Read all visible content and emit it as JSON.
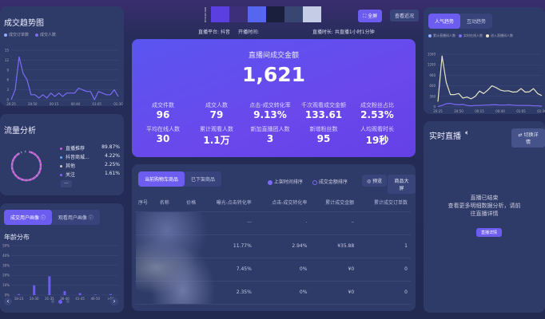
{
  "trend": {
    "title": "成交趋势图",
    "legend": [
      "成交订单数",
      "成交人数"
    ],
    "colors": [
      "#8fb0ff",
      "#7b6cf6"
    ],
    "chart_data": {
      "type": "line",
      "yticks": [
        "15",
        "12",
        "9",
        "6",
        "3",
        "0"
      ],
      "ylim": [
        0,
        15
      ],
      "xticks": [
        "20:25",
        "20:50",
        "00:15",
        "00:40",
        "01:05",
        "01:30"
      ],
      "series": [
        {
          "name": "成交人数",
          "values": [
            0,
            3,
            13,
            8,
            6,
            1.5,
            1.5,
            0.5,
            1.5,
            0.5,
            2,
            1,
            2,
            1,
            2,
            2,
            2,
            3.5,
            3,
            2.5,
            2.5,
            0,
            2.5,
            2,
            1.5,
            1.5,
            3,
            1
          ]
        }
      ]
    }
  },
  "traffic": {
    "title": "流量分析",
    "more": "···",
    "items": [
      {
        "label": "直播推荐",
        "value": "89.87%",
        "color": "#d05ad8"
      },
      {
        "label": "抖音商城...",
        "value": "4.22%",
        "color": "#5fa8ff"
      },
      {
        "label": "其他",
        "value": "2.25%",
        "color": "#c8c8c8"
      },
      {
        "label": "关注",
        "value": "1.61%",
        "color": "#7b6cf6"
      }
    ]
  },
  "portrait": {
    "tabs": [
      "成交用户画像 ⓘ",
      "观看用户画像 ⓘ"
    ],
    "subtitle": "年龄分布",
    "chart_data": {
      "type": "bar",
      "categories": [
        "18-23",
        "24-30",
        "31-35",
        "36-40",
        "41-45",
        "46-50",
        ">50"
      ],
      "values": [
        1,
        10,
        19,
        4,
        2,
        0.5,
        1
      ],
      "yticks": [
        "50%",
        "40%",
        "30%",
        "20%",
        "10%",
        "0%"
      ],
      "ylim": [
        0,
        50
      ]
    },
    "prev": "‹",
    "next": "›",
    "page": 2,
    "pages": 3
  },
  "header": {
    "swatches": [
      "#5b3fe0",
      "#3d2f7a",
      "#5566f0",
      "#1a1f3d",
      "#3a4672",
      "#c4cce6"
    ],
    "swatch_label": "RED DESIGN",
    "fullscreen": "⛶ 全屏",
    "review": "查看近况",
    "platform": "直播平台: 抖音",
    "start": "开播时间: ",
    "duration": "直播时长: 共直播1小时1分钟"
  },
  "kpi": {
    "title": "直播间成交金额",
    "value": "1,621",
    "items": [
      {
        "label": "成交件数",
        "value": "96"
      },
      {
        "label": "成交人数",
        "value": "79"
      },
      {
        "label": "点击-成交转化率",
        "value": "9.13%"
      },
      {
        "label": "千次观看成交金额",
        "value": "133.61"
      },
      {
        "label": "成交粉丝占比",
        "value": "2.53%"
      },
      {
        "label": "平均在线人数",
        "value": "30"
      },
      {
        "label": "累计观看人数",
        "value": "1.1万"
      },
      {
        "label": "新加直播团人数",
        "value": "3"
      },
      {
        "label": "新增粉丝数",
        "value": "95"
      },
      {
        "label": "人均观看时长",
        "value": "19秒"
      }
    ]
  },
  "products": {
    "tabs": [
      "当前购物车商品",
      "已下架商品"
    ],
    "sort": [
      "上架时间排序",
      "成交金额排序"
    ],
    "preview": "◎ 预览",
    "screen": "商品大屏",
    "headers": [
      "序号",
      "名称",
      "价格",
      "曝光-点击转化率",
      "点击-成交转化率",
      "累计成交金额",
      "累计成交订单数"
    ],
    "rows": [
      [
        "",
        "",
        "",
        "···",
        "·",
        "··",
        ""
      ],
      [
        "",
        "",
        "",
        "11.77%",
        "2.94%",
        "¥35.88",
        "1"
      ],
      [
        "",
        "",
        "",
        "7.45%",
        "0%",
        "¥0",
        "0"
      ],
      [
        "",
        "",
        "",
        "2.35%",
        "0%",
        "¥0",
        "0"
      ]
    ]
  },
  "popularity": {
    "tabs": [
      "人气趋势",
      "互动趋势"
    ],
    "legend": [
      "累计直播间人数",
      "实时在线人数",
      "进入直播间人数"
    ],
    "colors": [
      "#8fb0ff",
      "#7b6cf6",
      "#e8e4c8"
    ],
    "chart_data": {
      "type": "line",
      "yticks": [
        "1500",
        "1200",
        "900",
        "600",
        "300",
        "0"
      ],
      "ylim": [
        0,
        1500
      ],
      "xticks": [
        "20:25",
        "20:50",
        "00:15",
        "00:40",
        "01:05",
        "01:30"
      ],
      "series": [
        {
          "name": "实时在线人数",
          "values": [
            10,
            40,
            90,
            100,
            70,
            60,
            70,
            40,
            30,
            40,
            40,
            50,
            50,
            60,
            60,
            50,
            50,
            60,
            50,
            40,
            40,
            40,
            40,
            30,
            30,
            20
          ]
        },
        {
          "name": "进入直播间人数",
          "values": [
            150,
            1450,
            700,
            350,
            350,
            380,
            250,
            280,
            230,
            300,
            450,
            380,
            480,
            600,
            550,
            480,
            450,
            460,
            420,
            430,
            520,
            420,
            430,
            520,
            380,
            320
          ]
        }
      ]
    }
  },
  "live": {
    "title": "实时直播",
    "switch": "⇄ 切换详情",
    "msg1": "直播已结束",
    "msg2": "查看更多明细数据分析，请前",
    "msg3": "往直播详情",
    "button": "直播详情"
  }
}
